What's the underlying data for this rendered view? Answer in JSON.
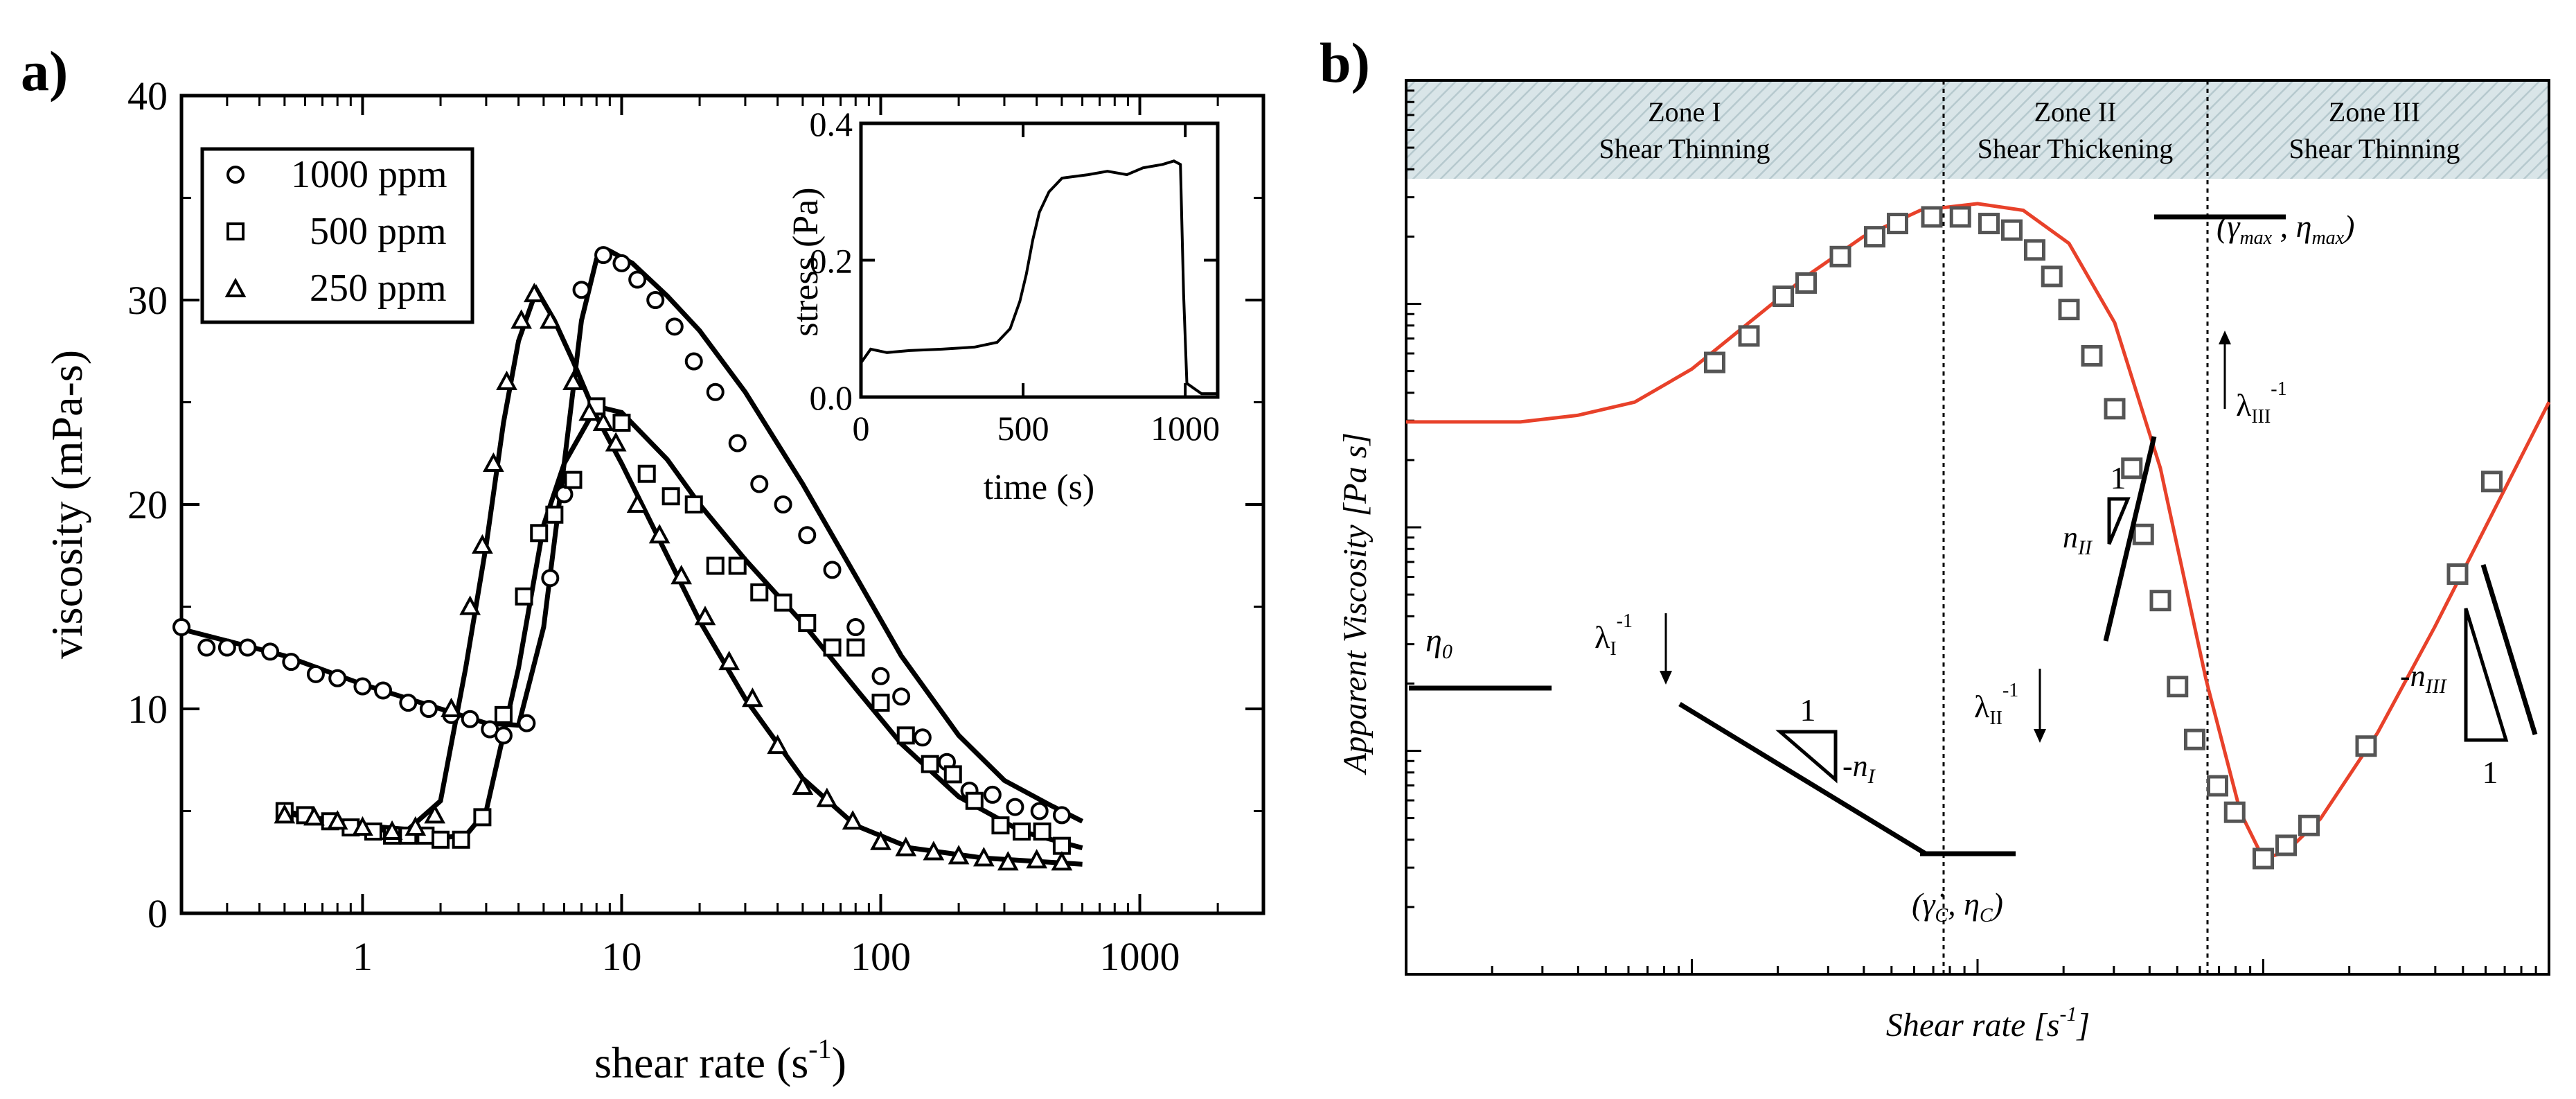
{
  "chart_data": [
    {
      "panel_label": "a)",
      "type": "scatter",
      "xscale": "log",
      "xlabel_main": "shear rate (s",
      "xlabel_sup": "-1",
      "xlabel_end": ")",
      "ylabel": "viscosity  (mPa-s)",
      "xlim": [
        0.2,
        3000
      ],
      "ylim": [
        0,
        40
      ],
      "xticks": [
        1,
        10,
        100,
        1000
      ],
      "xtick_labels": [
        "1",
        "10",
        "100",
        "1000"
      ],
      "yticks": [
        0,
        10,
        20,
        30,
        40
      ],
      "ytick_labels": [
        "0",
        "10",
        "20",
        "30",
        "40"
      ],
      "legend_position": "top-left",
      "series": [
        {
          "name": "1000 ppm",
          "marker": "circle",
          "points": [
            [
              0.2,
              14
            ],
            [
              0.25,
              13
            ],
            [
              0.3,
              13
            ],
            [
              0.36,
              13
            ],
            [
              0.44,
              12.8
            ],
            [
              0.53,
              12.3
            ],
            [
              0.66,
              11.7
            ],
            [
              0.8,
              11.5
            ],
            [
              1,
              11.1
            ],
            [
              1.2,
              10.9
            ],
            [
              1.5,
              10.3
            ],
            [
              1.8,
              10
            ],
            [
              2.2,
              9.7
            ],
            [
              2.6,
              9.5
            ],
            [
              3.1,
              9
            ],
            [
              3.5,
              8.7
            ],
            [
              4.3,
              9.3
            ],
            [
              5.3,
              16.4
            ],
            [
              6,
              20.5
            ],
            [
              7,
              30.5
            ],
            [
              8.5,
              32.2
            ],
            [
              10,
              31.8
            ],
            [
              11.5,
              31
            ],
            [
              13.5,
              30
            ],
            [
              16,
              28.7
            ],
            [
              19,
              27
            ],
            [
              23,
              25.5
            ],
            [
              28,
              23
            ],
            [
              34,
              21
            ],
            [
              42,
              20
            ],
            [
              52,
              18.5
            ],
            [
              65,
              16.8
            ],
            [
              80,
              14
            ],
            [
              100,
              11.6
            ],
            [
              120,
              10.6
            ],
            [
              145,
              8.6
            ],
            [
              180,
              7.4
            ],
            [
              220,
              6
            ],
            [
              270,
              5.8
            ],
            [
              330,
              5.2
            ],
            [
              410,
              5
            ],
            [
              500,
              4.8
            ]
          ],
          "fit": [
            [
              0.2,
              13.9
            ],
            [
              0.5,
              12.6
            ],
            [
              1,
              11.2
            ],
            [
              2,
              10
            ],
            [
              3,
              9.3
            ],
            [
              4,
              9.2
            ],
            [
              5,
              14
            ],
            [
              6,
              22
            ],
            [
              7,
              29
            ],
            [
              8,
              32
            ],
            [
              9,
              32.4
            ],
            [
              11,
              31.8
            ],
            [
              15,
              30.2
            ],
            [
              20,
              28.5
            ],
            [
              30,
              25.5
            ],
            [
              50,
              21
            ],
            [
              80,
              16.5
            ],
            [
              120,
              12.6
            ],
            [
              200,
              8.7
            ],
            [
              300,
              6.5
            ],
            [
              450,
              5.3
            ],
            [
              600,
              4.5
            ]
          ]
        },
        {
          "name": "500 ppm",
          "marker": "square",
          "points": [
            [
              0.5,
              5
            ],
            [
              0.6,
              4.8
            ],
            [
              0.75,
              4.5
            ],
            [
              0.9,
              4.2
            ],
            [
              1.1,
              4
            ],
            [
              1.3,
              3.8
            ],
            [
              1.5,
              3.8
            ],
            [
              1.75,
              3.8
            ],
            [
              2,
              3.6
            ],
            [
              2.4,
              3.6
            ],
            [
              2.9,
              4.7
            ],
            [
              3.5,
              9.7
            ],
            [
              4.2,
              15.5
            ],
            [
              4.8,
              18.6
            ],
            [
              5.5,
              19.5
            ],
            [
              6.5,
              21.2
            ],
            [
              8,
              24.8
            ],
            [
              10,
              24
            ],
            [
              12.5,
              21.5
            ],
            [
              15.5,
              20.4
            ],
            [
              19,
              20
            ],
            [
              23,
              17
            ],
            [
              28,
              17
            ],
            [
              34,
              15.7
            ],
            [
              42,
              15.2
            ],
            [
              52,
              14.2
            ],
            [
              65,
              13
            ],
            [
              80,
              13
            ],
            [
              100,
              10.3
            ],
            [
              125,
              8.7
            ],
            [
              155,
              7.3
            ],
            [
              190,
              6.8
            ],
            [
              230,
              5.5
            ],
            [
              290,
              4.3
            ],
            [
              350,
              4
            ],
            [
              420,
              4
            ],
            [
              500,
              3.3
            ]
          ],
          "fit": [
            [
              0.5,
              5
            ],
            [
              1,
              4.2
            ],
            [
              2,
              3.7
            ],
            [
              2.5,
              3.8
            ],
            [
              3,
              5
            ],
            [
              4,
              12
            ],
            [
              5,
              19
            ],
            [
              6,
              22
            ],
            [
              8,
              24.8
            ],
            [
              10,
              24.5
            ],
            [
              15,
              22.2
            ],
            [
              20,
              20
            ],
            [
              30,
              17.3
            ],
            [
              50,
              14.2
            ],
            [
              80,
              11
            ],
            [
              120,
              8.3
            ],
            [
              200,
              5.7
            ],
            [
              350,
              4
            ],
            [
              600,
              3.2
            ]
          ]
        },
        {
          "name": "250 ppm",
          "marker": "triangle",
          "points": [
            [
              0.5,
              4.8
            ],
            [
              0.65,
              4.7
            ],
            [
              0.8,
              4.5
            ],
            [
              1,
              4.2
            ],
            [
              1.3,
              4
            ],
            [
              1.6,
              4.2
            ],
            [
              1.9,
              4.8
            ],
            [
              2.2,
              10
            ],
            [
              2.6,
              15
            ],
            [
              2.9,
              18
            ],
            [
              3.2,
              22
            ],
            [
              3.6,
              26
            ],
            [
              4.1,
              29
            ],
            [
              4.6,
              30.3
            ],
            [
              5.3,
              29
            ],
            [
              6.5,
              26
            ],
            [
              7.5,
              24.5
            ],
            [
              8.5,
              24
            ],
            [
              9.5,
              23
            ],
            [
              11.5,
              20
            ],
            [
              14,
              18.5
            ],
            [
              17,
              16.5
            ],
            [
              21,
              14.5
            ],
            [
              26,
              12.3
            ],
            [
              32,
              10.5
            ],
            [
              40,
              8.2
            ],
            [
              50,
              6.2
            ],
            [
              62,
              5.6
            ],
            [
              78,
              4.5
            ],
            [
              100,
              3.5
            ],
            [
              125,
              3.2
            ],
            [
              160,
              3
            ],
            [
              200,
              2.8
            ],
            [
              250,
              2.7
            ],
            [
              310,
              2.5
            ],
            [
              400,
              2.6
            ],
            [
              500,
              2.5
            ]
          ],
          "fit": [
            [
              0.5,
              4.9
            ],
            [
              1,
              4.3
            ],
            [
              1.5,
              4.1
            ],
            [
              2,
              5.5
            ],
            [
              2.5,
              12
            ],
            [
              3,
              18
            ],
            [
              3.5,
              24
            ],
            [
              4,
              28
            ],
            [
              4.7,
              30.5
            ],
            [
              5.5,
              29
            ],
            [
              6.5,
              27
            ],
            [
              8,
              24.3
            ],
            [
              10,
              22
            ],
            [
              15,
              17.5
            ],
            [
              20,
              14.3
            ],
            [
              30,
              10.5
            ],
            [
              50,
              6.6
            ],
            [
              80,
              4.3
            ],
            [
              130,
              3.2
            ],
            [
              250,
              2.7
            ],
            [
              600,
              2.4
            ]
          ]
        }
      ],
      "inset": {
        "type": "line",
        "xlabel": "time (s)",
        "ylabel": "stress (Pa)",
        "xlim": [
          0,
          1100
        ],
        "ylim": [
          0,
          0.4
        ],
        "xticks": [
          0,
          500,
          1000
        ],
        "xtick_labels": [
          "0",
          "500",
          "1000"
        ],
        "yticks": [
          0,
          0.2,
          0.4
        ],
        "ytick_labels": [
          "0.0",
          "0.2",
          "0.4"
        ],
        "points": [
          [
            0,
            0.05
          ],
          [
            30,
            0.07
          ],
          [
            80,
            0.065
          ],
          [
            150,
            0.068
          ],
          [
            250,
            0.07
          ],
          [
            350,
            0.073
          ],
          [
            420,
            0.08
          ],
          [
            460,
            0.1
          ],
          [
            490,
            0.14
          ],
          [
            510,
            0.18
          ],
          [
            530,
            0.23
          ],
          [
            550,
            0.27
          ],
          [
            580,
            0.3
          ],
          [
            620,
            0.32
          ],
          [
            700,
            0.325
          ],
          [
            760,
            0.33
          ],
          [
            820,
            0.325
          ],
          [
            870,
            0.335
          ],
          [
            930,
            0.34
          ],
          [
            965,
            0.345
          ],
          [
            985,
            0.34
          ],
          [
            995,
            0.15
          ],
          [
            1005,
            0.02
          ],
          [
            1050,
            0.005
          ],
          [
            1100,
            0.005
          ]
        ]
      }
    },
    {
      "panel_label": "b)",
      "type": "line",
      "xscale": "log",
      "yscale": "log",
      "xlabel": "Shear rate [s",
      "xlabel_sup": "-1",
      "xlabel_end": "]",
      "ylabel": "Apparent Viscosity [Pa s]",
      "zones": [
        {
          "line1": "Zone I",
          "line2": "Shear Thinning"
        },
        {
          "line1": "Zone II",
          "line2": "Shear Thickening"
        },
        {
          "line1": "Zone III",
          "line2": "Shear Thinning"
        }
      ],
      "annotations": {
        "eta0": "η",
        "eta0_sub": "0",
        "lambda1": "λ",
        "lambda1_sub": "I",
        "lambda2": "λ",
        "lambda2_sub": "II",
        "lambda3": "λ",
        "lambda3_sub": "III",
        "inv_exp": "-1",
        "slope_one": "1",
        "n1": "-n",
        "n1_sub": "I",
        "n2": "n",
        "n2_sub": "II",
        "n3": "-n",
        "n3_sub": "III",
        "critical": "(γ̇",
        "critical_sub1": "C",
        "critical_mid": ", η",
        "critical_sub2": "C",
        "critical_end": ")",
        "maximum": "(γ̇",
        "maximum_sub1": "max",
        "maximum_mid": " , η",
        "maximum_sub2": "max",
        "maximum_end": ")"
      },
      "curve": [
        [
          0,
          0.205
        ],
        [
          0.1,
          0.205
        ],
        [
          0.15,
          0.21
        ],
        [
          0.2,
          0.22
        ],
        [
          0.25,
          0.245
        ],
        [
          0.3,
          0.28
        ],
        [
          0.35,
          0.315
        ],
        [
          0.4,
          0.345
        ],
        [
          0.45,
          0.365
        ],
        [
          0.5,
          0.37
        ],
        [
          0.54,
          0.365
        ],
        [
          0.58,
          0.34
        ],
        [
          0.62,
          0.28
        ],
        [
          0.66,
          0.17
        ],
        [
          0.7,
          0.01
        ],
        [
          0.73,
          -0.09
        ],
        [
          0.75,
          -0.125
        ],
        [
          0.77,
          -0.12
        ],
        [
          0.8,
          -0.095
        ],
        [
          0.85,
          -0.03
        ],
        [
          0.9,
          0.05
        ],
        [
          0.95,
          0.135
        ],
        [
          1,
          0.22
        ]
      ],
      "markers": [
        [
          0.27,
          0.25
        ],
        [
          0.3,
          0.27
        ],
        [
          0.33,
          0.3
        ],
        [
          0.35,
          0.31
        ],
        [
          0.38,
          0.33
        ],
        [
          0.41,
          0.345
        ],
        [
          0.43,
          0.355
        ],
        [
          0.46,
          0.36
        ],
        [
          0.485,
          0.36
        ],
        [
          0.51,
          0.355
        ],
        [
          0.53,
          0.35
        ],
        [
          0.55,
          0.335
        ],
        [
          0.565,
          0.315
        ],
        [
          0.58,
          0.29
        ],
        [
          0.6,
          0.255
        ],
        [
          0.62,
          0.215
        ],
        [
          0.635,
          0.17
        ],
        [
          0.645,
          0.12
        ],
        [
          0.66,
          0.07
        ],
        [
          0.675,
          0.005
        ],
        [
          0.69,
          -0.035
        ],
        [
          0.71,
          -0.07
        ],
        [
          0.725,
          -0.09
        ],
        [
          0.75,
          -0.125
        ],
        [
          0.77,
          -0.115
        ],
        [
          0.79,
          -0.1
        ],
        [
          0.84,
          -0.04
        ],
        [
          0.92,
          0.09
        ],
        [
          0.95,
          0.16
        ]
      ]
    }
  ]
}
